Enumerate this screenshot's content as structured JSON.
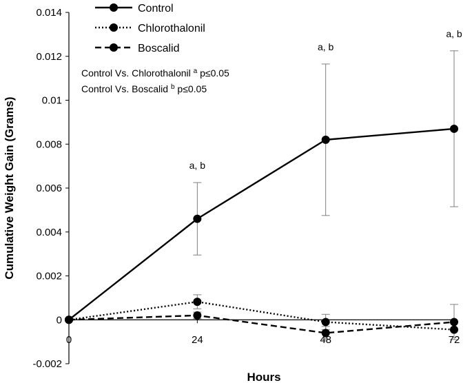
{
  "chart_data": {
    "type": "line",
    "title": "",
    "xlabel": "Hours",
    "ylabel": "Cumulative Weight Gain (Grams)",
    "x": [
      0,
      24,
      48,
      72
    ],
    "x_tick_labels": [
      "0",
      "24",
      "48",
      "72"
    ],
    "ylim": [
      -0.002,
      0.014
    ],
    "y_ticks": [
      -0.002,
      0,
      0.002,
      0.004,
      0.006,
      0.008,
      0.01,
      0.012,
      0.014
    ],
    "y_tick_labels": [
      "-0.002",
      "0",
      "0.002",
      "0.004",
      "0.006",
      "0.008",
      "0.01",
      "0.012",
      "0.014"
    ],
    "series": [
      {
        "name": "Control",
        "line_style": "solid",
        "values": [
          0,
          0.0046,
          0.0082,
          0.0087
        ],
        "errors": [
          0,
          0.00165,
          0.00345,
          0.00355
        ]
      },
      {
        "name": "Chlorothalonil",
        "line_style": "dotted",
        "values": [
          0,
          0.00082,
          -0.0001,
          -0.00045
        ],
        "errors": [
          0,
          0.00032,
          0.00035,
          0.0
        ]
      },
      {
        "name": "Boscalid",
        "line_style": "dashed",
        "values": [
          0,
          0.0002,
          -0.0006,
          -0.0001
        ],
        "errors": [
          0,
          0.00015,
          0.0003,
          0.0008
        ]
      }
    ],
    "point_annotations": [
      {
        "x": 24,
        "text": "a, b"
      },
      {
        "x": 48,
        "text": "a, b"
      },
      {
        "x": 72,
        "text": "a, b"
      }
    ],
    "notes": [
      {
        "prefix": "Control Vs. Chlorothalonil ",
        "sup": "a",
        "suffix": " p≤0.05"
      },
      {
        "prefix": "Control Vs. Boscalid ",
        "sup": "b",
        "suffix": " p≤0.05"
      }
    ],
    "legend_position": "top-center",
    "grid": false,
    "color": "#000000",
    "error_bar_color": "#7f7f7f"
  }
}
